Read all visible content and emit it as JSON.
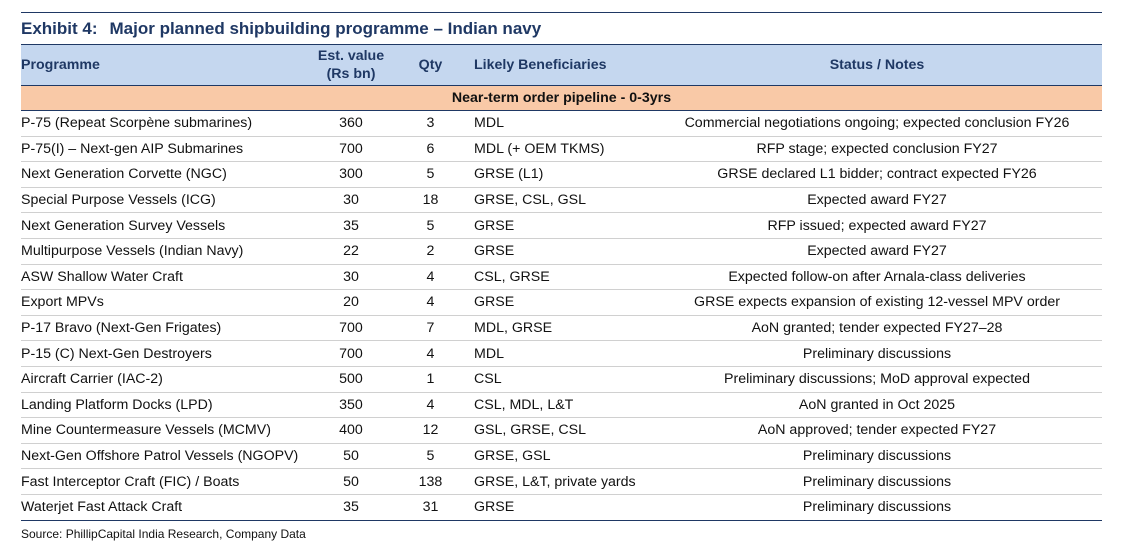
{
  "exhibit": {
    "label": "Exhibit 4:",
    "title": "Major planned shipbuilding programme – Indian navy"
  },
  "headers": {
    "programme": "Programme",
    "value_line1": "Est. value",
    "value_line2": "(Rs bn)",
    "qty": "Qty",
    "beneficiaries": "Likely Beneficiaries",
    "status": "Status / Notes"
  },
  "section_label": "Near-term order pipeline - 0-3yrs",
  "rows": [
    {
      "programme": "P-75 (Repeat Scorpène submarines)",
      "value": "360",
      "qty": "3",
      "beneficiaries": "MDL",
      "status": "Commercial negotiations ongoing; expected conclusion FY26"
    },
    {
      "programme": "P-75(I) – Next-gen AIP Submarines",
      "value": "700",
      "qty": "6",
      "beneficiaries": "MDL (+ OEM TKMS)",
      "status": "RFP stage; expected conclusion FY27"
    },
    {
      "programme": "Next Generation Corvette (NGC)",
      "value": "300",
      "qty": "5",
      "beneficiaries": "GRSE (L1)",
      "status": "GRSE declared L1 bidder; contract expected FY26"
    },
    {
      "programme": "Special Purpose Vessels (ICG)",
      "value": "30",
      "qty": "18",
      "beneficiaries": "GRSE, CSL, GSL",
      "status": "Expected award FY27"
    },
    {
      "programme": "Next Generation Survey Vessels",
      "value": "35",
      "qty": "5",
      "beneficiaries": "GRSE",
      "status": "RFP issued; expected award FY27"
    },
    {
      "programme": "Multipurpose Vessels (Indian Navy)",
      "value": "22",
      "qty": "2",
      "beneficiaries": "GRSE",
      "status": "Expected award FY27"
    },
    {
      "programme": "ASW Shallow Water Craft",
      "value": "30",
      "qty": "4",
      "beneficiaries": "CSL, GRSE",
      "status": "Expected follow-on after Arnala-class deliveries"
    },
    {
      "programme": "Export MPVs",
      "value": "20",
      "qty": "4",
      "beneficiaries": "GRSE",
      "status": "GRSE expects expansion of existing 12-vessel MPV order"
    },
    {
      "programme": "P-17 Bravo (Next-Gen Frigates)",
      "value": "700",
      "qty": "7",
      "beneficiaries": "MDL, GRSE",
      "status": "AoN granted; tender expected FY27–28"
    },
    {
      "programme": "P-15 (C) Next-Gen Destroyers",
      "value": "700",
      "qty": "4",
      "beneficiaries": "MDL",
      "status": "Preliminary discussions"
    },
    {
      "programme": "Aircraft Carrier (IAC-2)",
      "value": "500",
      "qty": "1",
      "beneficiaries": "CSL",
      "status": "Preliminary discussions; MoD approval expected"
    },
    {
      "programme": "Landing Platform Docks (LPD)",
      "value": "350",
      "qty": "4",
      "beneficiaries": "CSL, MDL, L&T",
      "status": "AoN granted in Oct 2025"
    },
    {
      "programme": "Mine Countermeasure Vessels (MCMV)",
      "value": "400",
      "qty": "12",
      "beneficiaries": "GSL, GRSE, CSL",
      "status": "AoN approved; tender expected FY27"
    },
    {
      "programme": "Next-Gen Offshore Patrol Vessels (NGOPV)",
      "value": "50",
      "qty": "5",
      "beneficiaries": "GRSE, GSL",
      "status": "Preliminary discussions"
    },
    {
      "programme": "Fast Interceptor Craft (FIC) / Boats",
      "value": "50",
      "qty": "138",
      "beneficiaries": "GRSE, L&T, private yards",
      "status": "Preliminary discussions"
    },
    {
      "programme": "Waterjet Fast Attack Craft",
      "value": "35",
      "qty": "31",
      "beneficiaries": "GRSE",
      "status": "Preliminary discussions"
    }
  ],
  "source": "Source: PhillipCapital India Research, Company Data"
}
